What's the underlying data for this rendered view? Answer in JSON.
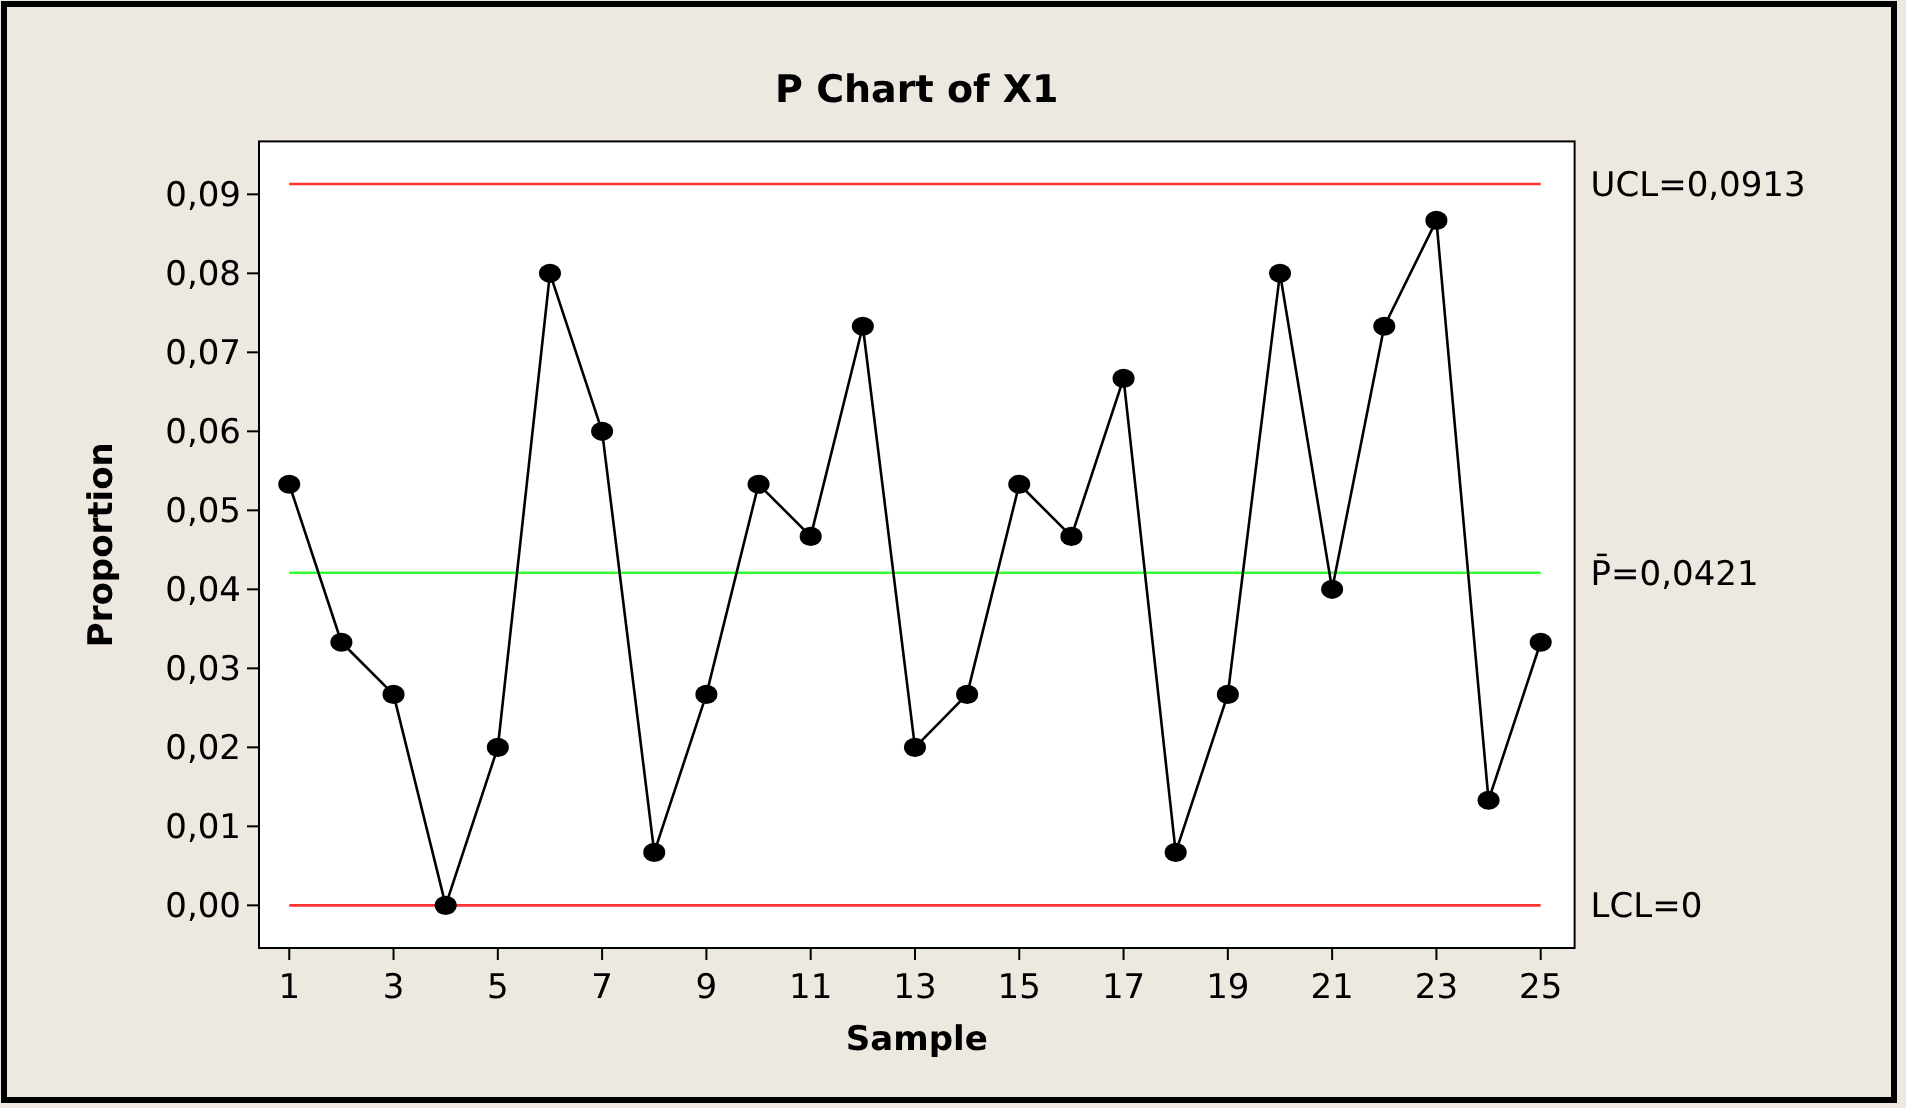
{
  "chart_data": {
    "type": "line",
    "title": "P Chart of X1",
    "xlabel": "Sample",
    "ylabel": "Proportion",
    "x": [
      1,
      2,
      3,
      4,
      5,
      6,
      7,
      8,
      9,
      10,
      11,
      12,
      13,
      14,
      15,
      16,
      17,
      18,
      19,
      20,
      21,
      22,
      23,
      24,
      25
    ],
    "series": [
      {
        "color": "#000000",
        "values": [
          0.0533,
          0.0333,
          0.0267,
          0,
          0.02,
          0.08,
          0.06,
          0.0067,
          0.0267,
          0.0533,
          0.0467,
          0.0733,
          0.02,
          0.0267,
          0.0533,
          0.0467,
          0.0667,
          0.0067,
          0.0267,
          0.08,
          0.04,
          0.0733,
          0.0867,
          0.0133,
          0.0333
        ]
      }
    ],
    "xlim": [
      0.42,
      25.65
    ],
    "ylim": [
      -0.0054,
      0.0967
    ],
    "xticks": [
      1,
      3,
      5,
      7,
      9,
      11,
      13,
      15,
      17,
      19,
      21,
      23,
      25
    ],
    "yticks": [
      {
        "value": 0,
        "label": "0,00"
      },
      {
        "value": 0.01,
        "label": "0,01"
      },
      {
        "value": 0.02,
        "label": "0,02"
      },
      {
        "value": 0.03,
        "label": "0,03"
      },
      {
        "value": 0.04,
        "label": "0,04"
      },
      {
        "value": 0.05,
        "label": "0,05"
      },
      {
        "value": 0.06,
        "label": "0,06"
      },
      {
        "value": 0.07,
        "label": "0,07"
      },
      {
        "value": 0.08,
        "label": "0,08"
      },
      {
        "value": 0.09,
        "label": "0,09"
      }
    ],
    "ref_lines": [
      {
        "axis": "y",
        "value": 0.0913,
        "label": "UCL=0,0913",
        "color": "#ff3333"
      },
      {
        "axis": "y",
        "value": 0.0421,
        "label": "P̄=0,0421",
        "color": "#33ff33"
      },
      {
        "axis": "y",
        "value": 0,
        "label": "LCL=0",
        "color": "#ff3333"
      }
    ],
    "marker": "circle",
    "line_style": "solid",
    "grid": false
  }
}
